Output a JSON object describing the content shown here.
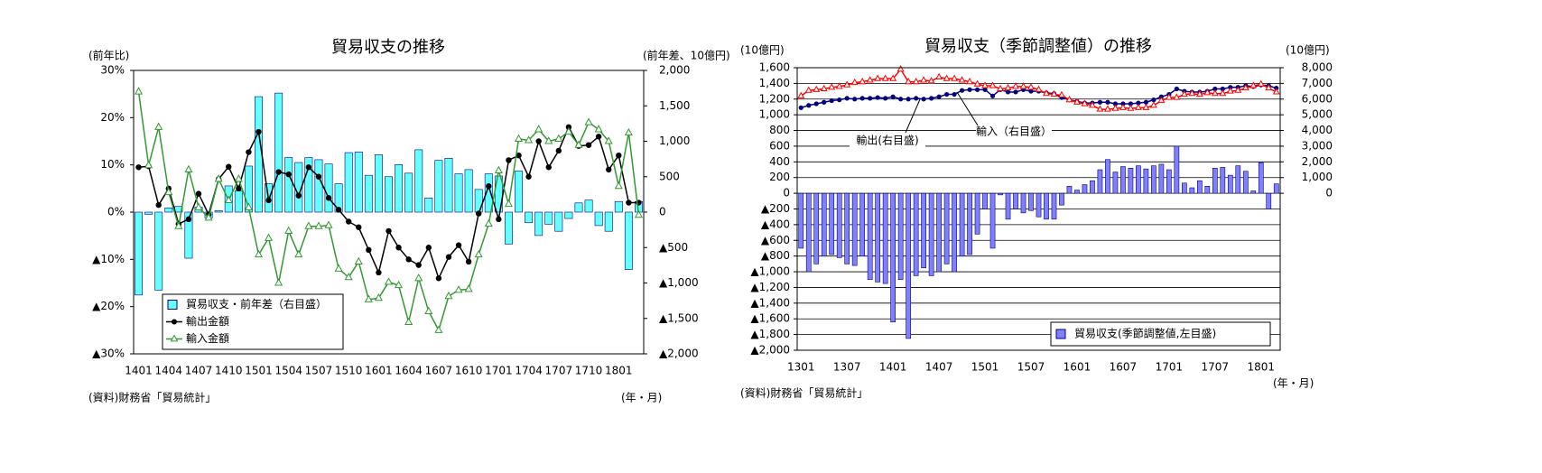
{
  "chart_data": [
    {
      "type": "combo",
      "title": "貿易収支の推移",
      "ylabel": "(前年比)",
      "y2label": "(前年差、10億円)",
      "xlabel": "(年・月)",
      "source": "(資料)財務省「貿易統計」",
      "grid": false,
      "legend": "lower-left",
      "categories": [
        "1401",
        null,
        null,
        "1404",
        null,
        null,
        "1407",
        null,
        null,
        "1410",
        null,
        null,
        "1501",
        null,
        null,
        "1504",
        null,
        null,
        "1507",
        null,
        null,
        "1510",
        null,
        null,
        "1601",
        null,
        null,
        "1604",
        null,
        null,
        "1607",
        null,
        null,
        "1610",
        null,
        null,
        "1701",
        null,
        null,
        "1704",
        null,
        null,
        "1707",
        null,
        null,
        "1710",
        null,
        null,
        "1801",
        null,
        null
      ],
      "ylim": [
        -30,
        30
      ],
      "yticks": [
        {
          "value": 30,
          "label": "30%"
        },
        {
          "value": 20,
          "label": "20%"
        },
        {
          "value": 10,
          "label": "10%"
        },
        {
          "value": 0,
          "label": "0%"
        },
        {
          "value": -10,
          "label": "▲10%"
        },
        {
          "value": -20,
          "label": "▲20%"
        },
        {
          "value": -30,
          "label": "▲30%"
        }
      ],
      "y2lim": [
        -2000,
        2000
      ],
      "y2ticks": [
        {
          "value": 2000,
          "label": "2,000"
        },
        {
          "value": 1500,
          "label": "1,500"
        },
        {
          "value": 1000,
          "label": "1,000"
        },
        500,
        0,
        {
          "value": -500,
          "label": "▲500"
        },
        {
          "value": -1000,
          "label": "▲1,000"
        },
        {
          "value": -1500,
          "label": "▲1,500"
        },
        {
          "value": -2000,
          "label": "▲2,000"
        }
      ],
      "series": [
        {
          "name": "貿易収支・前年差（右目盛）",
          "type": "bar",
          "axis": "y2",
          "color": "#66ffff",
          "values": [
            -1170,
            -30,
            -1100,
            60,
            80,
            -650,
            70,
            -80,
            20,
            370,
            300,
            650,
            1630,
            400,
            1680,
            770,
            700,
            770,
            740,
            680,
            400,
            840,
            850,
            520,
            810,
            500,
            670,
            550,
            880,
            200,
            730,
            760,
            540,
            600,
            320,
            540,
            510,
            -450,
            580,
            -150,
            -330,
            -170,
            -270,
            -90,
            130,
            170,
            -190,
            -270,
            150,
            -810,
            150
          ]
        },
        {
          "name": "輸出金額",
          "type": "line",
          "marker": "circle",
          "color": "#000000",
          "values": [
            9.5,
            9.7,
            1.5,
            5,
            -2.5,
            -1.5,
            3.9,
            -0.5,
            7,
            9.6,
            5,
            12.7,
            17,
            2.5,
            8.5,
            8,
            3.5,
            9.5,
            7.5,
            3,
            0.5,
            -2,
            -3.2,
            -8,
            -12.8,
            -4,
            -7.5,
            -10,
            -11.2,
            -7.5,
            -14,
            -9.5,
            -7,
            -10.5,
            -0.3,
            5.5,
            -1.5,
            11,
            12,
            7.5,
            15,
            9.5,
            13,
            18,
            14,
            14.2,
            16,
            9,
            12,
            2,
            2
          ]
        },
        {
          "name": "輸入金額",
          "type": "line",
          "marker": "triangle",
          "color": "#339933",
          "values": [
            25.5,
            9.9,
            18,
            4.2,
            -3,
            9,
            1,
            -1.2,
            7,
            2.5,
            7,
            1,
            -9,
            -5.5,
            -15,
            -4,
            -9,
            -3,
            -3,
            -2.8,
            -12,
            -13.8,
            -10.5,
            -18.5,
            -18.2,
            -14.8,
            -15.5,
            -23.3,
            -14,
            -21,
            -25,
            -17.8,
            -16.5,
            -16.3,
            -9,
            -2.5,
            8.8,
            1.7,
            15.5,
            15.2,
            17.5,
            15,
            15.5,
            17,
            14.2,
            19,
            17.5,
            15,
            5.5,
            16.8,
            -0.6
          ]
        }
      ]
    },
    {
      "type": "combo",
      "title": "貿易収支（季節調整値）の推移",
      "ylabel": "(10億円)",
      "y2label": "(10億円)",
      "xlabel": "(年・月)",
      "source": "(資料)財務省「貿易統計」",
      "grid": true,
      "legend": "lower-right",
      "annotations": [
        "輸出(右目盛)",
        "輸入（右目盛）"
      ],
      "categories": [
        "1301",
        null,
        null,
        null,
        null,
        null,
        "1307",
        null,
        null,
        null,
        null,
        null,
        "1401",
        null,
        null,
        null,
        null,
        null,
        "1407",
        null,
        null,
        null,
        null,
        null,
        "1501",
        null,
        null,
        null,
        null,
        null,
        "1507",
        null,
        null,
        null,
        null,
        null,
        "1601",
        null,
        null,
        null,
        null,
        null,
        "1607",
        null,
        null,
        null,
        null,
        null,
        "1701",
        null,
        null,
        null,
        null,
        null,
        "1707",
        null,
        null,
        null,
        null,
        null,
        "1801",
        null,
        null
      ],
      "ylim": [
        -2000,
        1600
      ],
      "yticks": [
        {
          "value": 1600,
          "label": "1,600"
        },
        {
          "value": 1400,
          "label": "1,400"
        },
        {
          "value": 1200,
          "label": "1,200"
        },
        {
          "value": 1000,
          "label": "1,000"
        },
        800,
        600,
        400,
        200,
        0,
        {
          "value": -200,
          "label": "▲200"
        },
        {
          "value": -400,
          "label": "▲400"
        },
        {
          "value": -600,
          "label": "▲600"
        },
        {
          "value": -800,
          "label": "▲800"
        },
        {
          "value": -1000,
          "label": "▲1,000"
        },
        {
          "value": -1200,
          "label": "▲1,200"
        },
        {
          "value": -1400,
          "label": "▲1,400"
        },
        {
          "value": -1600,
          "label": "▲1,600"
        },
        {
          "value": -1800,
          "label": "▲1,800"
        },
        {
          "value": -2000,
          "label": "▲2,000"
        }
      ],
      "y2lim": [
        -10000,
        8000
      ],
      "y2ticks": [
        {
          "value": 8000,
          "label": "8,000"
        },
        {
          "value": 7000,
          "label": "7,000"
        },
        {
          "value": 6000,
          "label": "6,000"
        },
        {
          "value": 5000,
          "label": "5,000"
        },
        {
          "value": 4000,
          "label": "4,000"
        },
        {
          "value": 3000,
          "label": "3,000"
        },
        {
          "value": 2000,
          "label": "2,000"
        },
        {
          "value": 1000,
          "label": "1,000"
        },
        0
      ],
      "series": [
        {
          "name": "貿易収支(季節調整値,左目盛)",
          "type": "bar",
          "color": "#8080ff",
          "values": [
            -700,
            -1000,
            -900,
            -800,
            -780,
            -820,
            -900,
            -920,
            -800,
            -1100,
            -1130,
            -1150,
            -1640,
            -1100,
            -1850,
            -1050,
            -950,
            -1050,
            -1000,
            -900,
            -1000,
            -800,
            -780,
            -520,
            -200,
            -700,
            -20,
            -330,
            -200,
            -250,
            -220,
            -300,
            -330,
            -330,
            -150,
            90,
            40,
            110,
            160,
            300,
            430,
            270,
            340,
            320,
            350,
            310,
            350,
            370,
            300,
            600,
            130,
            70,
            160,
            90,
            320,
            330,
            230,
            350,
            280,
            30,
            390,
            -200,
            120
          ]
        },
        {
          "type": "line",
          "axis": "y2",
          "marker": "circle",
          "color": "#000080",
          "values": [
            5450,
            5600,
            5700,
            5800,
            5900,
            5950,
            6050,
            6000,
            6050,
            6050,
            6100,
            6050,
            6150,
            6000,
            6000,
            6050,
            6000,
            6050,
            6150,
            6300,
            6300,
            6550,
            6600,
            6600,
            6600,
            6200,
            6600,
            6450,
            6450,
            6600,
            6500,
            6500,
            6400,
            6350,
            6100,
            5950,
            5850,
            5750,
            5750,
            5800,
            5800,
            5700,
            5700,
            5700,
            5750,
            5800,
            5950,
            6150,
            6300,
            6650,
            6500,
            6450,
            6450,
            6500,
            6650,
            6650,
            6750,
            6750,
            6850,
            6800,
            6900,
            6850,
            6700
          ]
        },
        {
          "type": "line",
          "axis": "y2",
          "marker": "triangle",
          "color": "#ff0000",
          "values": [
            6200,
            6550,
            6600,
            6650,
            6750,
            6800,
            6900,
            7050,
            7100,
            7200,
            7300,
            7300,
            7300,
            7900,
            7100,
            7100,
            7200,
            7150,
            7400,
            7300,
            7300,
            7200,
            7100,
            6950,
            6850,
            6850,
            6650,
            6700,
            6800,
            6800,
            6750,
            6600,
            6350,
            6300,
            6250,
            5950,
            5800,
            5700,
            5600,
            5350,
            5350,
            5400,
            5450,
            5400,
            5450,
            5450,
            5600,
            5900,
            6100,
            6100,
            6300,
            6350,
            6300,
            6400,
            6350,
            6350,
            6500,
            6550,
            6700,
            6850,
            6950,
            6700,
            6450
          ]
        }
      ]
    }
  ]
}
